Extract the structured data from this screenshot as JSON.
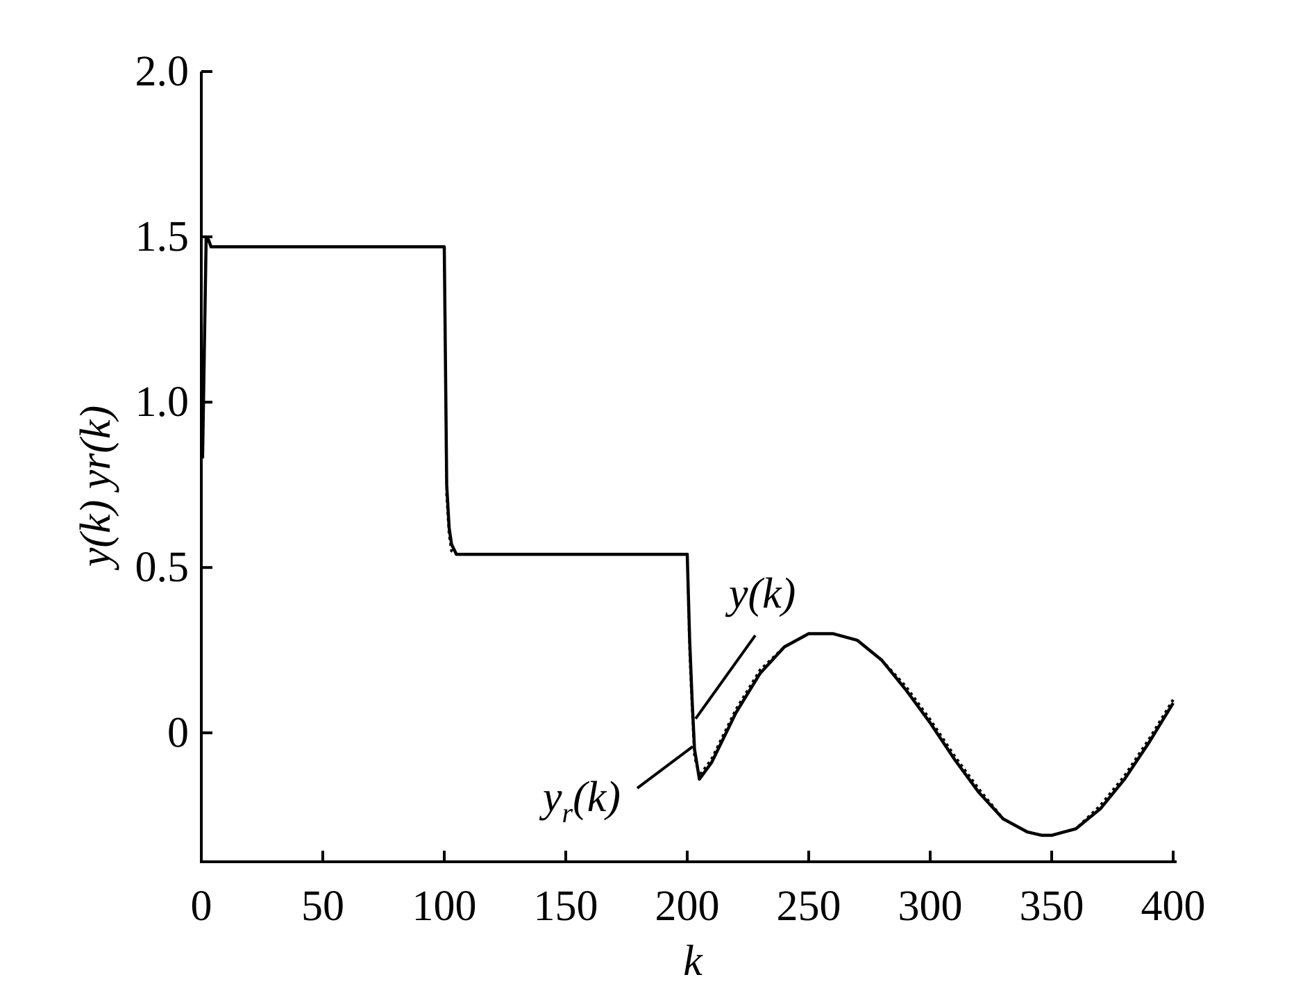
{
  "chart_data": {
    "type": "line",
    "xlabel": "k",
    "ylabel": "y(k) yr(k)",
    "xlim": [
      0,
      400
    ],
    "ylim": [
      -0.39,
      2.0
    ],
    "xticks": [
      "0",
      "50",
      "100",
      "150",
      "200",
      "250",
      "300",
      "350",
      "400"
    ],
    "yticks": [
      "0",
      "0.5",
      "1.0",
      "1.5",
      "2.0"
    ],
    "series": [
      {
        "name": "y(k)",
        "style": "solid",
        "x": [
          0.5,
          2,
          3,
          4,
          6,
          10,
          50,
          100,
          101,
          102,
          103,
          105,
          150,
          200,
          201,
          202,
          203,
          205,
          210,
          220,
          230,
          240,
          250,
          256,
          260,
          270,
          280,
          290,
          300,
          310,
          320,
          330,
          340,
          346,
          350,
          360,
          370,
          380,
          390,
          400
        ],
        "y": [
          0.83,
          1.5,
          1.49,
          1.47,
          1.47,
          1.47,
          1.47,
          1.47,
          0.75,
          0.62,
          0.57,
          0.54,
          0.54,
          0.54,
          0.28,
          0.1,
          -0.05,
          -0.14,
          -0.09,
          0.06,
          0.18,
          0.26,
          0.3,
          0.3,
          0.3,
          0.28,
          0.22,
          0.13,
          0.03,
          -0.08,
          -0.18,
          -0.26,
          -0.3,
          -0.31,
          -0.31,
          -0.29,
          -0.23,
          -0.14,
          -0.03,
          0.09
        ]
      },
      {
        "name": "yr(k)",
        "style": "dotted",
        "x": [
          0.5,
          2,
          3,
          4,
          6,
          10,
          50,
          100,
          101,
          102,
          103,
          105,
          150,
          200,
          201,
          202,
          203,
          205,
          210,
          220,
          230,
          240,
          250,
          256,
          260,
          270,
          280,
          290,
          300,
          310,
          320,
          330,
          340,
          346,
          350,
          360,
          370,
          380,
          390,
          400
        ],
        "y": [
          0.83,
          1.5,
          1.49,
          1.47,
          1.47,
          1.47,
          1.47,
          1.47,
          0.72,
          0.6,
          0.55,
          0.54,
          0.54,
          0.54,
          0.25,
          0.08,
          -0.07,
          -0.13,
          -0.08,
          0.07,
          0.19,
          0.26,
          0.3,
          0.3,
          0.3,
          0.28,
          0.22,
          0.14,
          0.04,
          -0.07,
          -0.17,
          -0.26,
          -0.3,
          -0.31,
          -0.31,
          -0.29,
          -0.22,
          -0.13,
          -0.02,
          0.1
        ]
      }
    ],
    "annotations": [
      {
        "text": "y(k)",
        "target": "y(k)"
      },
      {
        "main": "y",
        "sub": "r",
        "rest": "(k)",
        "target": "yr(k)"
      }
    ]
  }
}
